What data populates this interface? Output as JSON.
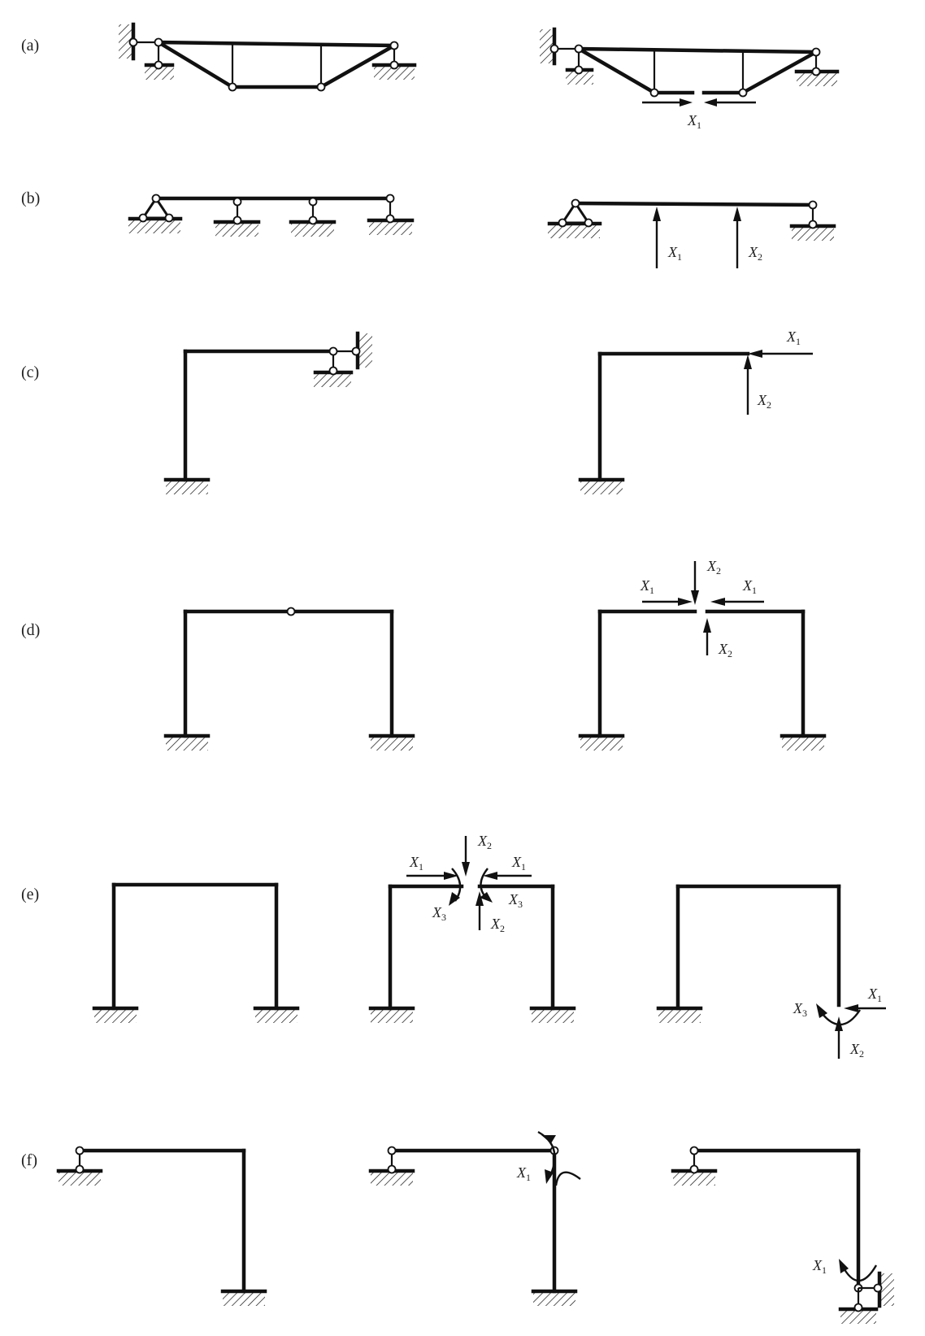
{
  "labels": {
    "a": "(a)",
    "b": "(b)",
    "c": "(c)",
    "d": "(d)",
    "e": "(e)",
    "f": "(f)"
  },
  "vars": {
    "x": "X",
    "s1": "1",
    "s2": "2",
    "s3": "3"
  }
}
